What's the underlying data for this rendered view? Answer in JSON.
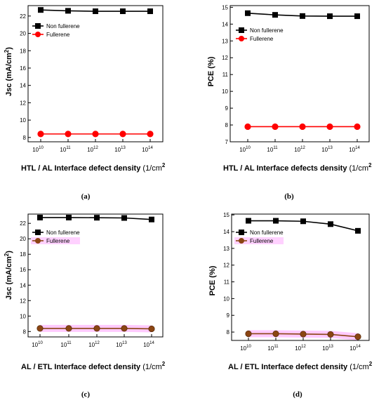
{
  "chart_data": [
    {
      "type": "line",
      "caption": "(a)",
      "ylabel": "Jsc (mA/cm",
      "ylabel_sup": "2",
      "ylabel_end": ")",
      "xlabel": "HTL / AL Interface defect density",
      "xlabel_unit": "(1/cm",
      "xlabel_sup": "2",
      "x_categories": [
        "10",
        "10",
        "10",
        "10",
        "10"
      ],
      "x_exponents": [
        "10",
        "11",
        "12",
        "13",
        "14"
      ],
      "ylim": [
        7.5,
        23.2
      ],
      "yticks": [
        8,
        10,
        12,
        14,
        16,
        18,
        20,
        22
      ],
      "legend": "top-left",
      "series": [
        {
          "name": "Non fullerene",
          "values": [
            22.7,
            22.6,
            22.55,
            22.55,
            22.55
          ],
          "color": "#000000",
          "marker": "square"
        },
        {
          "name": "Fullerene",
          "values": [
            8.4,
            8.4,
            8.4,
            8.4,
            8.4
          ],
          "color": "#ff0000",
          "marker": "circle"
        }
      ]
    },
    {
      "type": "line",
      "caption": "(b)",
      "ylabel": "PCE (%)",
      "ylabel_sup": "",
      "ylabel_end": "",
      "xlabel": "HTL / AL Interface defects density",
      "xlabel_unit": "(1/cm",
      "xlabel_sup": "2",
      "x_categories": [
        "10",
        "10",
        "10",
        "10",
        "10"
      ],
      "x_exponents": [
        "10",
        "11",
        "12",
        "13",
        "14"
      ],
      "ylim": [
        7,
        15.1
      ],
      "yticks": [
        7,
        8,
        9,
        10,
        11,
        12,
        13,
        14,
        15
      ],
      "legend": "top-left",
      "series": [
        {
          "name": "Non fullerene",
          "values": [
            14.65,
            14.55,
            14.48,
            14.47,
            14.47
          ],
          "color": "#000000",
          "marker": "square"
        },
        {
          "name": "Fullerene",
          "values": [
            7.9,
            7.9,
            7.9,
            7.9,
            7.9
          ],
          "color": "#ff0000",
          "marker": "circle"
        }
      ]
    },
    {
      "type": "line",
      "caption": "(c)",
      "ylabel": "Jsc (mA/cm",
      "ylabel_sup": "2",
      "ylabel_end": ")",
      "xlabel": "AL / ETL Interface defect density",
      "xlabel_unit": "(1/cm",
      "xlabel_sup": "2",
      "x_categories": [
        "10",
        "10",
        "10",
        "10",
        "10"
      ],
      "x_exponents": [
        "10",
        "11",
        "12",
        "13",
        "14"
      ],
      "ylim": [
        7.3,
        23.2
      ],
      "yticks": [
        8,
        10,
        12,
        14,
        16,
        18,
        20,
        22
      ],
      "legend": "top-left",
      "series": [
        {
          "name": "Non fullerene",
          "values": [
            22.75,
            22.75,
            22.73,
            22.7,
            22.5
          ],
          "color": "#000000",
          "marker": "square"
        },
        {
          "name": "Fullerene",
          "values": [
            8.4,
            8.4,
            8.4,
            8.4,
            8.35
          ],
          "color": "#8b4513",
          "marker": "circle"
        }
      ]
    },
    {
      "type": "line",
      "caption": "(d)",
      "ylabel": "PCE (%)",
      "ylabel_sup": "",
      "ylabel_end": "",
      "xlabel": "AL / ETL Interface defect density",
      "xlabel_unit": "(1/cm",
      "xlabel_sup": "2",
      "x_categories": [
        "10",
        "10",
        "10",
        "10",
        "10"
      ],
      "x_exponents": [
        "10",
        "11",
        "12",
        "13",
        "14"
      ],
      "ylim": [
        7.5,
        15.05
      ],
      "yticks": [
        8,
        9,
        10,
        11,
        12,
        13,
        14,
        15
      ],
      "legend": "top-left",
      "series": [
        {
          "name": "Non fullerene",
          "values": [
            14.65,
            14.65,
            14.62,
            14.45,
            14.05
          ],
          "color": "#000000",
          "marker": "square"
        },
        {
          "name": "Fullerene",
          "values": [
            7.9,
            7.9,
            7.88,
            7.86,
            7.72
          ],
          "color": "#8b4513",
          "marker": "circle"
        }
      ]
    }
  ]
}
